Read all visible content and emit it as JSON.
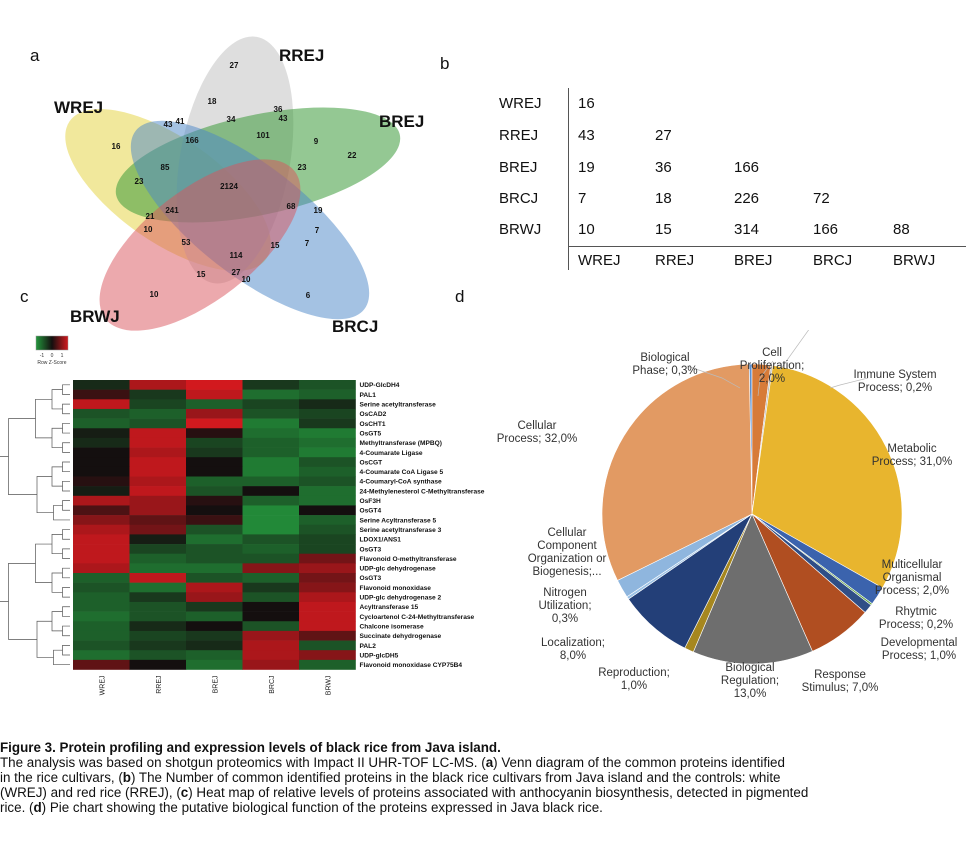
{
  "panel_letters": {
    "a": "a",
    "b": "b",
    "c": "c",
    "d": "d"
  },
  "venn": {
    "sets": {
      "wrej": "WREJ",
      "rrej": "RREJ",
      "brej": "BREJ",
      "brcj": "BRCJ",
      "brwj": "BRWJ"
    },
    "counts": {
      "n27": "27",
      "n18": "18",
      "n36": "36",
      "n43a": "43",
      "n41": "41",
      "n43b": "43",
      "n34": "34",
      "n16": "16",
      "n166": "166",
      "n101": "101",
      "n9": "9",
      "n22": "22",
      "n23a": "23",
      "n85": "85",
      "n23b": "23",
      "n2124": "2124",
      "n68": "68",
      "n19": "19",
      "n21": "21",
      "n241": "241",
      "n10a": "10",
      "n7a": "7",
      "n53": "53",
      "n114": "114",
      "n15a": "15",
      "n7b": "7",
      "n15b": "15",
      "n27b": "27",
      "n10b": "10",
      "n10c": "10",
      "n6": "6"
    }
  },
  "matrix": {
    "row_labels": [
      "WREJ",
      "RREJ",
      "BREJ",
      "BRCJ",
      "BRWJ"
    ],
    "col_labels": [
      "WREJ",
      "RREJ",
      "BREJ",
      "BRCJ",
      "BRWJ"
    ],
    "rows": [
      [
        "16"
      ],
      [
        "43",
        "27"
      ],
      [
        "19",
        "36",
        "166"
      ],
      [
        "7",
        "18",
        "226",
        "72"
      ],
      [
        "10",
        "15",
        "314",
        "166",
        "88"
      ]
    ]
  },
  "heatmap": {
    "legend_ticks": [
      "-1",
      "0",
      "1"
    ],
    "legend_title": "Row Z-Score",
    "columns": [
      "WREJ",
      "RREJ",
      "BREJ",
      "BRCJ",
      "BRWJ"
    ],
    "rows": [
      {
        "label": "UDP-GlcDH4",
        "z": [
          -0.2,
          0.8,
          1.0,
          -0.3,
          -0.5
        ]
      },
      {
        "label": "PAL1",
        "z": [
          0.2,
          -0.3,
          0.9,
          -0.7,
          -0.6
        ]
      },
      {
        "label": "Serine acetyltransferase",
        "z": [
          0.9,
          -0.4,
          -0.6,
          -0.4,
          -0.2
        ]
      },
      {
        "label": "OsCAD2",
        "z": [
          -0.5,
          -0.6,
          0.7,
          -0.5,
          -0.4
        ]
      },
      {
        "label": "OsCHT1",
        "z": [
          -0.6,
          -0.5,
          1.0,
          -0.8,
          -0.3
        ]
      },
      {
        "label": "OsGT5",
        "z": [
          -0.1,
          0.9,
          0.1,
          -0.7,
          -0.8
        ]
      },
      {
        "label": "Methyltransferase (MPBQ)",
        "z": [
          -0.2,
          0.9,
          -0.4,
          -0.6,
          -0.7
        ]
      },
      {
        "label": "4-Coumarate Ligase",
        "z": [
          0.0,
          0.8,
          -0.3,
          -0.6,
          -0.8
        ]
      },
      {
        "label": "OsCGT",
        "z": [
          0.0,
          0.9,
          0.0,
          -0.8,
          -0.5
        ]
      },
      {
        "label": "4-Coumarate CoA Ligase 5",
        "z": [
          0.0,
          0.9,
          0.0,
          -0.8,
          -0.6
        ]
      },
      {
        "label": "4-Coumaryl-CoA synthase",
        "z": [
          0.1,
          0.8,
          -0.6,
          -0.6,
          -0.5
        ]
      },
      {
        "label": "24-Methylenesterol C-Methyltransferase",
        "z": [
          -0.1,
          0.9,
          -0.5,
          0.0,
          -0.7
        ]
      },
      {
        "label": "OsF3H",
        "z": [
          0.8,
          0.7,
          0.1,
          -0.6,
          -0.7
        ]
      },
      {
        "label": "OsGT4",
        "z": [
          0.3,
          0.7,
          0.0,
          -0.9,
          0.0
        ]
      },
      {
        "label": "Serine Acyltransferase 5",
        "z": [
          0.6,
          0.4,
          0.2,
          -0.9,
          -0.6
        ]
      },
      {
        "label": "Serine acetyltransferase 3",
        "z": [
          0.8,
          0.5,
          -0.5,
          -0.9,
          -0.5
        ]
      },
      {
        "label": "LDOX1/ANS1",
        "z": [
          0.9,
          -0.1,
          -0.7,
          -0.5,
          -0.4
        ]
      },
      {
        "label": "OsGT3",
        "z": [
          0.9,
          -0.4,
          -0.5,
          -0.6,
          -0.4
        ]
      },
      {
        "label": "Flavonoid O-methyltransferase",
        "z": [
          0.9,
          -0.6,
          -0.5,
          -0.5,
          0.5
        ]
      },
      {
        "label": "UDP-glc dehydrogenase",
        "z": [
          0.8,
          -0.7,
          -0.7,
          0.6,
          0.7
        ]
      },
      {
        "label": "OsGT3",
        "z": [
          -0.6,
          0.9,
          -0.5,
          -0.6,
          0.5
        ]
      },
      {
        "label": "Flavonoid monoxidase",
        "z": [
          -0.5,
          -0.7,
          0.8,
          -0.3,
          0.6
        ]
      },
      {
        "label": "UDP-glc dehydrogenase 2",
        "z": [
          -0.6,
          -0.3,
          0.7,
          -0.5,
          0.8
        ]
      },
      {
        "label": "Acyltransferase 15",
        "z": [
          -0.6,
          -0.5,
          -0.3,
          0.0,
          0.9
        ]
      },
      {
        "label": "Cycloartenol C-24-Methyltransferase",
        "z": [
          -0.7,
          -0.5,
          -0.6,
          0.0,
          0.9
        ]
      },
      {
        "label": "Chalcone isomerase",
        "z": [
          -0.6,
          -0.2,
          0.0,
          -0.5,
          0.9
        ]
      },
      {
        "label": "Succinate dehydrogenase",
        "z": [
          -0.6,
          -0.4,
          -0.3,
          0.7,
          0.4
        ]
      },
      {
        "label": "PAL2",
        "z": [
          -0.5,
          -0.3,
          -0.2,
          0.8,
          -0.5
        ]
      },
      {
        "label": "UDP-glcDH5",
        "z": [
          -0.7,
          -0.5,
          -0.6,
          0.8,
          0.6
        ]
      },
      {
        "label": "Flavonoid monoxidase CYP75B4",
        "z": [
          0.4,
          0.0,
          -0.7,
          0.7,
          -0.6
        ]
      }
    ]
  },
  "chart_data": {
    "type": "pie",
    "slices": [
      {
        "label": "Biological Phase; 0,3%",
        "value": 0.3,
        "color": "#5b8fcf"
      },
      {
        "label": "Cell Proliferation; 2,0%",
        "value": 2.0,
        "color": "#d77b38"
      },
      {
        "label": "Immune System Process; 0,2%",
        "value": 0.2,
        "color": "#b8b8b8"
      },
      {
        "label": "Metabolic Process; 31,0%",
        "value": 31.0,
        "color": "#e8b52e"
      },
      {
        "label": "Multicellular Organismal Process; 2,0%",
        "value": 2.0,
        "color": "#3b63ad"
      },
      {
        "label": "Rhytmic Process; 0,2%",
        "value": 0.2,
        "color": "#6aa84f"
      },
      {
        "label": "Developmental Process; 1,0%",
        "value": 1.0,
        "color": "#2f4e86"
      },
      {
        "label": "Response Stimulus; 7,0%",
        "value": 7.0,
        "color": "#b04e21"
      },
      {
        "label": "Biological Regulation; 13,0%",
        "value": 13.0,
        "color": "#6e6e6e"
      },
      {
        "label": "Reproduction; 1,0%",
        "value": 1.0,
        "color": "#a6871f"
      },
      {
        "label": "Localization; 8,0%",
        "value": 8.0,
        "color": "#233f78"
      },
      {
        "label": "Nitrogen Utilization; 0,3%",
        "value": 0.3,
        "color": "#9bc2e6"
      },
      {
        "label": "Cellular Component Organization or Biogenesis;...",
        "value": 2.0,
        "color": "#8fb6de"
      },
      {
        "label": "Cellular Process; 32,0%",
        "value": 32.0,
        "color": "#e29a63"
      }
    ]
  },
  "pie_labels": {
    "bio_phase": [
      "Biological",
      "Phase; 0,3%"
    ],
    "cell_prolif": [
      "Cell",
      "Proliferation;",
      "2,0%"
    ],
    "immune": [
      "Immune System",
      "Process; 0,2%"
    ],
    "metabolic": [
      "Metabolic",
      "Process; 31,0%"
    ],
    "multicell": [
      "Multicellular",
      "Organismal",
      "Process; 2,0%"
    ],
    "rhytmic": [
      "Rhytmic",
      "Process; 0,2%"
    ],
    "developmental": [
      "Developmental",
      "Process; 1,0%"
    ],
    "response": [
      "Response",
      "Stimulus; 7,0%"
    ],
    "bioreg": [
      "Biological",
      "Regulation;",
      "13,0%"
    ],
    "reproduction": [
      "Reproduction;",
      "1,0%"
    ],
    "localization": [
      "Localization;",
      "8,0%"
    ],
    "nitrogen": [
      "Nitrogen",
      "Utilization;",
      "0,3%"
    ],
    "ccob": [
      "Cellular",
      "Component",
      "Organization or",
      "Biogenesis;..."
    ],
    "cellular": [
      "Cellular",
      "Process; 32,0%"
    ]
  },
  "caption": {
    "title": "Figure 3. Protein profiling and expression levels of black rice from Java island.",
    "l1_a": "The analysis was based on shotgun proteomics with Impact II UHR-TOF LC-MS. (",
    "l1_b": "a",
    "l1_c": ") Venn diagram of the common proteins identified",
    "l2_a": "in the rice cultivars, (",
    "l2_b": "b",
    "l2_c": ") The Number of common identified proteins in the black rice cultivars from Java island and the controls: white",
    "l3_a": "(WREJ) and red rice (RREJ), (",
    "l3_b": "c",
    "l3_c": ") Heat map of relative levels of proteins  associated with anthocyanin biosynthesis, detected in pigmented",
    "l4_a": "rice. (",
    "l4_b": "d",
    "l4_c": ") Pie chart showing the putative biological function of the proteins expressed in Java black rice."
  }
}
